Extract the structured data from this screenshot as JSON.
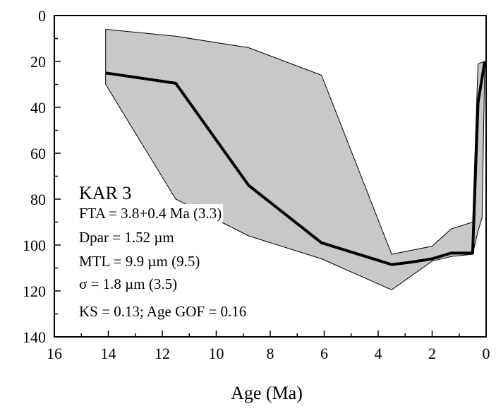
{
  "chart_data": {
    "type": "line",
    "title": "",
    "xlabel": "Age (Ma)",
    "ylabel": "",
    "xlim": [
      16,
      0
    ],
    "ylim": [
      0,
      140
    ],
    "y_inverted": true,
    "x_ticks": [
      16,
      14,
      12,
      10,
      8,
      6,
      4,
      2,
      0
    ],
    "y_ticks": [
      0,
      20,
      40,
      60,
      80,
      100,
      120,
      140
    ],
    "grid": false,
    "envelope": {
      "upper": [
        [
          14.1,
          6
        ],
        [
          11.5,
          9
        ],
        [
          8.8,
          14
        ],
        [
          6.1,
          26
        ],
        [
          3.5,
          104
        ],
        [
          2.0,
          100.5
        ],
        [
          1.3,
          93
        ],
        [
          0.5,
          90
        ],
        [
          0.3,
          21
        ],
        [
          0.05,
          20
        ]
      ],
      "lower": [
        [
          0.05,
          20
        ],
        [
          0.15,
          88
        ],
        [
          0.3,
          94
        ],
        [
          0.5,
          104
        ],
        [
          1.3,
          105
        ],
        [
          2.0,
          107
        ],
        [
          3.5,
          119.5
        ],
        [
          6.1,
          106
        ],
        [
          8.8,
          96
        ],
        [
          11.5,
          80
        ],
        [
          14.1,
          30
        ]
      ],
      "fill_color": "#c8c8c8"
    },
    "series": [
      {
        "points": [
          [
            14.1,
            25
          ],
          [
            11.5,
            29.5
          ],
          [
            8.8,
            74
          ],
          [
            6.1,
            99
          ],
          [
            3.5,
            108.5
          ],
          [
            2.8,
            107.5
          ],
          [
            2.0,
            106
          ],
          [
            1.3,
            103.5
          ],
          [
            0.5,
            103.5
          ],
          [
            0.3,
            38
          ],
          [
            0.05,
            20
          ]
        ],
        "color": "#000000"
      }
    ],
    "annotations": {
      "sample": "KAR 3",
      "lines": [
        "FTA = 3.8+0.4 Ma (3.3)",
        "Dpar = 1.52 µm",
        "MTL = 9.9 µm (9.5)",
        "σ = 1.8 µm (3.5)",
        "KS = 0.13; Age GOF = 0.16"
      ]
    }
  }
}
